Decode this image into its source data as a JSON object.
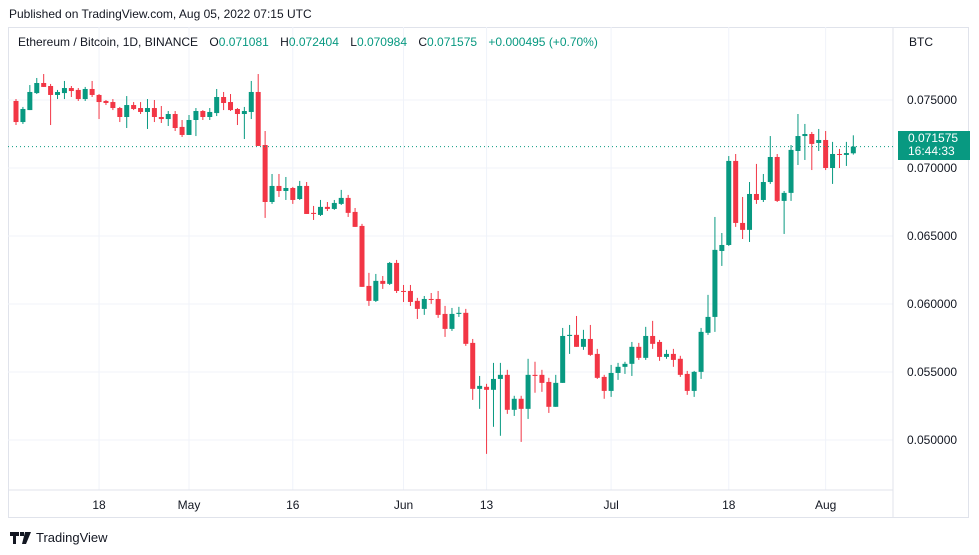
{
  "header": {
    "published": "Published on TradingView.com, Aug 05, 2022 07:15 UTC"
  },
  "legend": {
    "symbol": "Ethereum / Bitcoin, 1D, BINANCE",
    "o_label": "O",
    "o_value": "0.071081",
    "h_label": "H",
    "h_value": "0.072404",
    "l_label": "L",
    "l_value": "0.070984",
    "c_label": "C",
    "c_value": "0.071575",
    "change": "+0.000495 (+0.70%)"
  },
  "price_axis": {
    "currency": "BTC",
    "last_price": "0.071575",
    "countdown": "16:44:33"
  },
  "footer": {
    "brand": "TradingView"
  },
  "colors": {
    "up": "#089981",
    "down": "#f23645",
    "grid": "#f0f3fa",
    "border": "#e0e3eb"
  },
  "chart_data": {
    "type": "candlestick",
    "title": "Ethereum / Bitcoin, 1D, BINANCE",
    "ylabel": "BTC",
    "ylim": [
      0.0474,
      0.0781
    ],
    "y_ticks": [
      {
        "value": 0.075,
        "label": "0.075000"
      },
      {
        "value": 0.07,
        "label": "0.070000"
      },
      {
        "value": 0.065,
        "label": "0.065000"
      },
      {
        "value": 0.06,
        "label": "0.060000"
      },
      {
        "value": 0.055,
        "label": "0.055000"
      },
      {
        "value": 0.05,
        "label": "0.050000"
      }
    ],
    "x_ticks": [
      {
        "index": 12,
        "label": "18"
      },
      {
        "index": 25,
        "label": "May"
      },
      {
        "index": 40,
        "label": "16"
      },
      {
        "index": 56,
        "label": "Jun"
      },
      {
        "index": 68,
        "label": "13"
      },
      {
        "index": 86,
        "label": "Jul"
      },
      {
        "index": 103,
        "label": "18"
      },
      {
        "index": 117,
        "label": "Aug"
      }
    ],
    "last_price": 0.071575,
    "ohlc": [
      [
        0.07493,
        0.07507,
        0.07316,
        0.07338
      ],
      [
        0.07338,
        0.07449,
        0.07324,
        0.07434
      ],
      [
        0.07426,
        0.0761,
        0.07426,
        0.07559
      ],
      [
        0.07551,
        0.07662,
        0.07544,
        0.07625
      ],
      [
        0.07625,
        0.07691,
        0.07596,
        0.07596
      ],
      [
        0.07603,
        0.07618,
        0.07316,
        0.07537
      ],
      [
        0.07537,
        0.07574,
        0.07507,
        0.07559
      ],
      [
        0.07551,
        0.0764,
        0.07507,
        0.07588
      ],
      [
        0.07588,
        0.07603,
        0.07522,
        0.07566
      ],
      [
        0.07574,
        0.07588,
        0.07493,
        0.07507
      ],
      [
        0.07507,
        0.07596,
        0.07493,
        0.07581
      ],
      [
        0.07581,
        0.0764,
        0.07522,
        0.07537
      ],
      [
        0.07537,
        0.07544,
        0.0736,
        0.07485
      ],
      [
        0.07493,
        0.075,
        0.07463,
        0.07478
      ],
      [
        0.07485,
        0.07507,
        0.07426,
        0.07441
      ],
      [
        0.07441,
        0.07449,
        0.07338,
        0.07375
      ],
      [
        0.07375,
        0.07529,
        0.07294,
        0.07463
      ],
      [
        0.07463,
        0.07485,
        0.07426,
        0.07434
      ],
      [
        0.07441,
        0.07485,
        0.07397,
        0.07412
      ],
      [
        0.07412,
        0.07507,
        0.07287,
        0.07441
      ],
      [
        0.07441,
        0.075,
        0.07338,
        0.07375
      ],
      [
        0.07375,
        0.07456,
        0.07331,
        0.0736
      ],
      [
        0.0736,
        0.07419,
        0.07309,
        0.07397
      ],
      [
        0.07397,
        0.07419,
        0.07272,
        0.07294
      ],
      [
        0.07302,
        0.07353,
        0.07228,
        0.07243
      ],
      [
        0.07243,
        0.0739,
        0.07243,
        0.07353
      ],
      [
        0.07353,
        0.07441,
        0.07235,
        0.07419
      ],
      [
        0.07419,
        0.07426,
        0.07353,
        0.07375
      ],
      [
        0.07375,
        0.07441,
        0.07353,
        0.07412
      ],
      [
        0.07404,
        0.07581,
        0.07382,
        0.07522
      ],
      [
        0.07522,
        0.07559,
        0.07426,
        0.07478
      ],
      [
        0.07485,
        0.07544,
        0.07419,
        0.07426
      ],
      [
        0.07434,
        0.07441,
        0.07316,
        0.07397
      ],
      [
        0.07397,
        0.07449,
        0.07213,
        0.07419
      ],
      [
        0.07412,
        0.0764,
        0.0736,
        0.07559
      ],
      [
        0.07559,
        0.07691,
        0.07162,
        0.07162
      ],
      [
        0.07169,
        0.07272,
        0.06633,
        0.0675
      ],
      [
        0.0675,
        0.06956,
        0.06736,
        0.06868
      ],
      [
        0.06868,
        0.06956,
        0.06787,
        0.06831
      ],
      [
        0.06831,
        0.06934,
        0.06765,
        0.06853
      ],
      [
        0.06853,
        0.06861,
        0.06736,
        0.06765
      ],
      [
        0.06772,
        0.06905,
        0.06765,
        0.06868
      ],
      [
        0.06868,
        0.06897,
        0.06662,
        0.06662
      ],
      [
        0.0667,
        0.06721,
        0.06618,
        0.06662
      ],
      [
        0.06655,
        0.06765,
        0.06647,
        0.06714
      ],
      [
        0.06714,
        0.0675,
        0.06684,
        0.06699
      ],
      [
        0.06699,
        0.06765,
        0.06692,
        0.06743
      ],
      [
        0.06736,
        0.06839,
        0.06728,
        0.0678
      ],
      [
        0.0678,
        0.06802,
        0.0664,
        0.0667
      ],
      [
        0.06677,
        0.06706,
        0.06567,
        0.06567
      ],
      [
        0.06574,
        0.06589,
        0.06126,
        0.06126
      ],
      [
        0.06133,
        0.06229,
        0.05986,
        0.06023
      ],
      [
        0.06023,
        0.06221,
        0.06015,
        0.0617
      ],
      [
        0.0617,
        0.06206,
        0.06111,
        0.06148
      ],
      [
        0.06148,
        0.06309,
        0.0614,
        0.06302
      ],
      [
        0.06302,
        0.06324,
        0.06081,
        0.06096
      ],
      [
        0.06096,
        0.0614,
        0.06015,
        0.06089
      ],
      [
        0.06096,
        0.0614,
        0.05986,
        0.06015
      ],
      [
        0.06023,
        0.06045,
        0.0589,
        0.05964
      ],
      [
        0.05964,
        0.06059,
        0.0592,
        0.06037
      ],
      [
        0.06037,
        0.06081,
        0.06001,
        0.0603
      ],
      [
        0.06037,
        0.06096,
        0.05898,
        0.0592
      ],
      [
        0.05927,
        0.05986,
        0.05758,
        0.05817
      ],
      [
        0.05817,
        0.05971,
        0.05802,
        0.05927
      ],
      [
        0.05927,
        0.05979,
        0.05905,
        0.05935
      ],
      [
        0.05935,
        0.05964,
        0.05692,
        0.05707
      ],
      [
        0.05714,
        0.05743,
        0.05295,
        0.05376
      ],
      [
        0.05376,
        0.05471,
        0.05229,
        0.05398
      ],
      [
        0.05391,
        0.05413,
        0.04898,
        0.05369
      ],
      [
        0.05369,
        0.05567,
        0.05097,
        0.05449
      ],
      [
        0.05449,
        0.05567,
        0.05031,
        0.05479
      ],
      [
        0.05479,
        0.05516,
        0.05192,
        0.05222
      ],
      [
        0.05222,
        0.05325,
        0.05177,
        0.05303
      ],
      [
        0.05303,
        0.05325,
        0.04986,
        0.05229
      ],
      [
        0.05229,
        0.05597,
        0.05155,
        0.05479
      ],
      [
        0.05479,
        0.05575,
        0.05347,
        0.05471
      ],
      [
        0.05479,
        0.05516,
        0.05354,
        0.0542
      ],
      [
        0.05427,
        0.05457,
        0.05199,
        0.05244
      ],
      [
        0.05244,
        0.05479,
        0.05244,
        0.0542
      ],
      [
        0.0542,
        0.05824,
        0.0542,
        0.05765
      ],
      [
        0.05765,
        0.05846,
        0.05633,
        0.05773
      ],
      [
        0.05773,
        0.05912,
        0.05685,
        0.05685
      ],
      [
        0.05685,
        0.0581,
        0.05663,
        0.05743
      ],
      [
        0.05743,
        0.05846,
        0.05619,
        0.05626
      ],
      [
        0.05633,
        0.0567,
        0.05449,
        0.05457
      ],
      [
        0.05464,
        0.05479,
        0.05303,
        0.05361
      ],
      [
        0.05361,
        0.05552,
        0.05317,
        0.05493
      ],
      [
        0.05493,
        0.05567,
        0.05442,
        0.05538
      ],
      [
        0.05538,
        0.05575,
        0.05486,
        0.0556
      ],
      [
        0.0556,
        0.05721,
        0.05471,
        0.05685
      ],
      [
        0.05685,
        0.05714,
        0.05589,
        0.05604
      ],
      [
        0.05604,
        0.05832,
        0.05589,
        0.05765
      ],
      [
        0.05765,
        0.05876,
        0.0567,
        0.05707
      ],
      [
        0.05721,
        0.05736,
        0.05582,
        0.05611
      ],
      [
        0.05611,
        0.05663,
        0.05597,
        0.05633
      ],
      [
        0.05633,
        0.0567,
        0.05538,
        0.05589
      ],
      [
        0.05597,
        0.05619,
        0.05464,
        0.05479
      ],
      [
        0.05486,
        0.05508,
        0.05332,
        0.05361
      ],
      [
        0.05361,
        0.05508,
        0.05317,
        0.05501
      ],
      [
        0.05501,
        0.05824,
        0.05449,
        0.05795
      ],
      [
        0.05788,
        0.06067,
        0.05773,
        0.05905
      ],
      [
        0.05905,
        0.0664,
        0.05795,
        0.06398
      ],
      [
        0.0639,
        0.06522,
        0.0628,
        0.06434
      ],
      [
        0.06434,
        0.07088,
        0.06427,
        0.07052
      ],
      [
        0.07052,
        0.07103,
        0.06567,
        0.06596
      ],
      [
        0.06596,
        0.06787,
        0.06478,
        0.06545
      ],
      [
        0.06545,
        0.06897,
        0.06456,
        0.06809
      ],
      [
        0.06809,
        0.0703,
        0.06736,
        0.06765
      ],
      [
        0.06765,
        0.06956,
        0.0675,
        0.06897
      ],
      [
        0.06897,
        0.07235,
        0.06883,
        0.07081
      ],
      [
        0.07081,
        0.07103,
        0.0675,
        0.06758
      ],
      [
        0.06758,
        0.06831,
        0.06515,
        0.06817
      ],
      [
        0.06817,
        0.07169,
        0.06758,
        0.07133
      ],
      [
        0.07125,
        0.07397,
        0.07022,
        0.07235
      ],
      [
        0.07235,
        0.07324,
        0.07059,
        0.0725
      ],
      [
        0.0725,
        0.07265,
        0.06985,
        0.07177
      ],
      [
        0.07184,
        0.07287,
        0.07125,
        0.07206
      ],
      [
        0.07206,
        0.07272,
        0.06985,
        0.07
      ],
      [
        0.07,
        0.07192,
        0.06883,
        0.07103
      ],
      [
        0.07103,
        0.0714,
        0.07,
        0.07096
      ],
      [
        0.07096,
        0.07192,
        0.07015,
        0.0711
      ],
      [
        0.071081,
        0.072404,
        0.070984,
        0.071575
      ]
    ]
  }
}
